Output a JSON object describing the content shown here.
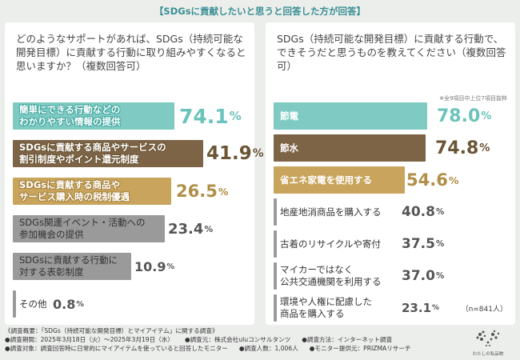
{
  "banner": "【SDGsに貢献したいと思うと回答した方が回答】",
  "colors": {
    "teal": "#7fcbc4",
    "brown": "#7d6446",
    "gold": "#c8a45c",
    "gray": "#9a9a9a"
  },
  "chart_data": [
    {
      "type": "bar",
      "title": "どのようなサポートがあれば、SDGs（持続可能な開発目標）に貢献する行動に取り組みやすくなると思いますか？（複数回答可）",
      "categories": [
        "簡単にできる行動などのわかりやすい情報の提供",
        "SDGsに貢献する商品やサービスの割引制度やポイント還元制度",
        "SDGsに貢献する商品やサービス購入時の税制優遇",
        "SDGs関連イベント・活動への参加機会の提供",
        "SDGsに貢献する行動に対する表彰制度",
        "その他"
      ],
      "values": [
        74.1,
        41.9,
        26.5,
        23.4,
        10.9,
        0.8
      ],
      "unit": "%",
      "xlim": [
        0,
        100
      ]
    },
    {
      "type": "bar",
      "title": "SDGs（持続可能な開発目標）に貢献する行動で、できそうだと思うものを教えてください（複数回答可）",
      "note": "※全9項目中上位7項目抜粋",
      "categories": [
        "節電",
        "節水",
        "省エネ家電を使用する",
        "地産地消商品を購入する",
        "古着のリサイクルや寄付",
        "マイカーではなく公共交通機関を利用する",
        "環境や人権に配慮した商品を購入する"
      ],
      "values": [
        78.0,
        74.8,
        54.6,
        40.8,
        37.5,
        37.0,
        23.1
      ],
      "unit": "%",
      "sample": "（n=841人）",
      "xlim": [
        0,
        100
      ]
    }
  ],
  "labels": {
    "left": [
      [
        "簡単にできる行動などの",
        "わかりやすい情報の提供"
      ],
      [
        "SDGsに貢献する商品やサービスの",
        "割引制度やポイント還元制度"
      ],
      [
        "SDGsに貢献する商品や",
        "サービス購入時の税制優遇"
      ],
      [
        "SDGs関連イベント・活動への",
        "参加機会の提供"
      ],
      [
        "SDGsに貢献する行動に",
        "対する表彰制度"
      ],
      [
        "その他"
      ]
    ],
    "right": [
      [
        "節電"
      ],
      [
        "節水"
      ],
      [
        "省エネ家電を使用する"
      ],
      [
        "地産地消商品を購入する"
      ],
      [
        "古着のリサイクルや寄付"
      ],
      [
        "マイカーではなく",
        "公共交通機関を利用する"
      ],
      [
        "環境や人権に配慮した",
        "商品を購入する"
      ]
    ]
  },
  "footer": {
    "title": "《調査概要：「SDGs（持続可能な開発目標）とマイアイテム」に関する調査》",
    "period": "●調査期間：2025年3月18日（火）～2025年3月19日（水）",
    "org": "●調査元：株式会社uluコンサルタンツ",
    "method": "●調査方法：インターネット調査",
    "target": "●調査対象：調査回答時に日常的にマイアイテムを使っていると回答したモニター",
    "count": "●調査人数：1,006人",
    "monitor": "●モニター提供元：PRIZMAリサーチ"
  },
  "logo_text": "わたしの私品物"
}
